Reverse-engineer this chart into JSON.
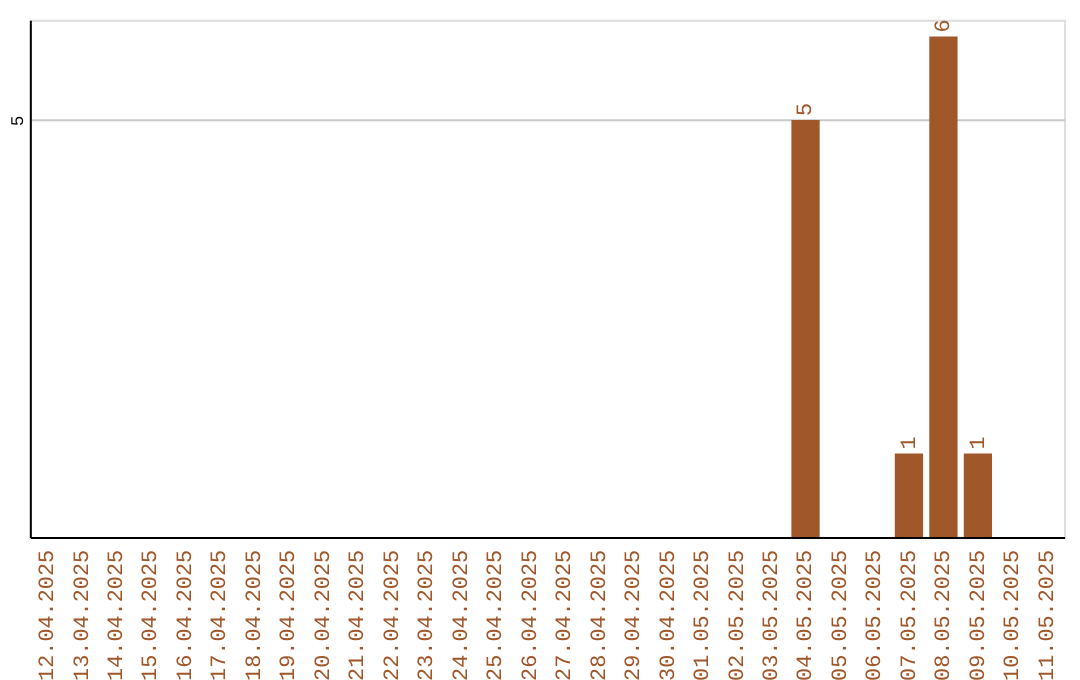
{
  "chart_data": {
    "type": "bar",
    "categories": [
      "12.04.2025",
      "13.04.2025",
      "14.04.2025",
      "15.04.2025",
      "16.04.2025",
      "17.04.2025",
      "18.04.2025",
      "19.04.2025",
      "20.04.2025",
      "21.04.2025",
      "22.04.2025",
      "23.04.2025",
      "24.04.2025",
      "25.04.2025",
      "26.04.2025",
      "27.04.2025",
      "28.04.2025",
      "29.04.2025",
      "30.04.2025",
      "01.05.2025",
      "02.05.2025",
      "03.05.2025",
      "04.05.2025",
      "05.05.2025",
      "06.05.2025",
      "07.05.2025",
      "08.05.2025",
      "09.05.2025",
      "10.05.2025",
      "11.05.2025"
    ],
    "values": [
      null,
      null,
      null,
      null,
      null,
      null,
      null,
      null,
      null,
      null,
      null,
      null,
      null,
      null,
      null,
      null,
      null,
      null,
      null,
      null,
      null,
      null,
      5,
      null,
      null,
      1,
      6,
      1,
      null,
      null
    ],
    "color": "#a0572a",
    "ylim": [
      0,
      6.2
    ],
    "yticks": [
      5
    ],
    "grid": "y",
    "data_labels": true
  }
}
